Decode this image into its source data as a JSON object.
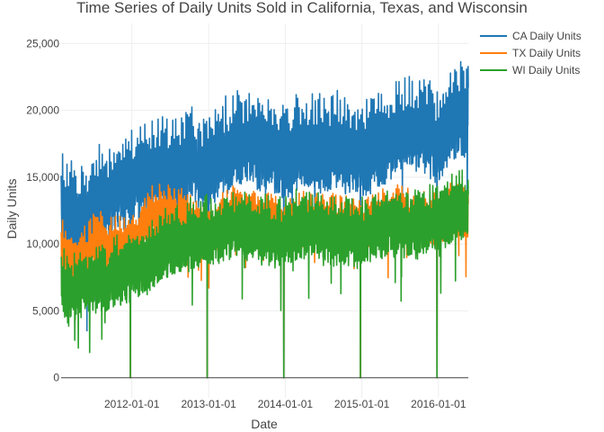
{
  "chart_data": {
    "type": "line",
    "title": "Time Series of Daily Units Sold in California, Texas, and Wisconsin",
    "xlabel": "Date",
    "ylabel": "Daily Units",
    "x_range": [
      "2011-01-29",
      "2016-05-22"
    ],
    "x_ticks": [
      "2012-01-01",
      "2013-01-01",
      "2014-01-01",
      "2015-01-01",
      "2016-01-01"
    ],
    "ylim": [
      -1500,
      26500
    ],
    "y_ticks": [
      0,
      5000,
      10000,
      15000,
      20000,
      25000
    ],
    "y_tick_labels": [
      "0",
      "5,000",
      "10,000",
      "15,000",
      "20,000",
      "25,000"
    ],
    "grid": true,
    "legend_position": "top-right",
    "zero_days": [
      "2011-12-25",
      "2012-12-25",
      "2013-12-25",
      "2014-12-25",
      "2015-12-25"
    ],
    "series": [
      {
        "name": "CA Daily Units",
        "color": "#1f77b4",
        "monthly_x": [
          "2011-02-01",
          "2011-03-01",
          "2011-04-01",
          "2011-05-01",
          "2011-06-01",
          "2011-07-01",
          "2011-08-01",
          "2011-09-01",
          "2011-10-01",
          "2011-11-01",
          "2011-12-01",
          "2012-01-01",
          "2012-02-01",
          "2012-03-01",
          "2012-04-01",
          "2012-05-01",
          "2012-06-01",
          "2012-07-01",
          "2012-08-01",
          "2012-09-01",
          "2012-10-01",
          "2012-11-01",
          "2012-12-01",
          "2013-01-01",
          "2013-02-01",
          "2013-03-01",
          "2013-04-01",
          "2013-05-01",
          "2013-06-01",
          "2013-07-01",
          "2013-08-01",
          "2013-09-01",
          "2013-10-01",
          "2013-11-01",
          "2013-12-01",
          "2014-01-01",
          "2014-02-01",
          "2014-03-01",
          "2014-04-01",
          "2014-05-01",
          "2014-06-01",
          "2014-07-01",
          "2014-08-01",
          "2014-09-01",
          "2014-10-01",
          "2014-11-01",
          "2014-12-01",
          "2015-01-01",
          "2015-02-01",
          "2015-03-01",
          "2015-04-01",
          "2015-05-01",
          "2015-06-01",
          "2015-07-01",
          "2015-08-01",
          "2015-09-01",
          "2015-10-01",
          "2015-11-01",
          "2015-12-01",
          "2016-01-01",
          "2016-02-01",
          "2016-03-01",
          "2016-04-01",
          "2016-05-01"
        ],
        "monthly_mean": [
          12800,
          12000,
          11800,
          11500,
          11300,
          12500,
          13200,
          13000,
          13500,
          14000,
          13800,
          14300,
          15200,
          14600,
          15000,
          15300,
          15600,
          15400,
          15200,
          15200,
          16000,
          15900,
          15500,
          15500,
          16200,
          16800,
          16700,
          16900,
          17300,
          17300,
          17400,
          17000,
          16800,
          16700,
          16500,
          16200,
          16500,
          17000,
          17000,
          17100,
          17000,
          16800,
          17000,
          17200,
          16900,
          16700,
          16600,
          16400,
          16700,
          16900,
          17200,
          17500,
          18000,
          17900,
          18300,
          18200,
          18100,
          18000,
          17800,
          17500,
          18500,
          19500,
          19200,
          19600
        ],
        "weekly_amplitude": 3000
      },
      {
        "name": "TX Daily Units",
        "color": "#ff7f0e",
        "monthly_x": [
          "2011-02-01",
          "2011-03-01",
          "2011-04-01",
          "2011-05-01",
          "2011-06-01",
          "2011-07-01",
          "2011-08-01",
          "2011-09-01",
          "2011-10-01",
          "2011-11-01",
          "2011-12-01",
          "2012-01-01",
          "2012-02-01",
          "2012-03-01",
          "2012-04-01",
          "2012-05-01",
          "2012-06-01",
          "2012-07-01",
          "2012-08-01",
          "2012-09-01",
          "2012-10-01",
          "2012-11-01",
          "2012-12-01",
          "2013-01-01",
          "2013-02-01",
          "2013-03-01",
          "2013-04-01",
          "2013-05-01",
          "2013-06-01",
          "2013-07-01",
          "2013-08-01",
          "2013-09-01",
          "2013-10-01",
          "2013-11-01",
          "2013-12-01",
          "2014-01-01",
          "2014-02-01",
          "2014-03-01",
          "2014-04-01",
          "2014-05-01",
          "2014-06-01",
          "2014-07-01",
          "2014-08-01",
          "2014-09-01",
          "2014-10-01",
          "2014-11-01",
          "2014-12-01",
          "2015-01-01",
          "2015-02-01",
          "2015-03-01",
          "2015-04-01",
          "2015-05-01",
          "2015-06-01",
          "2015-07-01",
          "2015-08-01",
          "2015-09-01",
          "2015-10-01",
          "2015-11-01",
          "2015-12-01",
          "2016-01-01",
          "2016-02-01",
          "2016-03-01",
          "2016-04-01",
          "2016-05-01"
        ],
        "monthly_mean": [
          9500,
          8800,
          8600,
          8800,
          9000,
          9800,
          10200,
          9600,
          9700,
          9800,
          9600,
          9800,
          10500,
          11500,
          12000,
          12000,
          12300,
          12200,
          11800,
          11700,
          11400,
          11300,
          11000,
          10800,
          11000,
          11300,
          11700,
          12100,
          12200,
          12300,
          11800,
          11600,
          11500,
          11500,
          11300,
          11000,
          11200,
          11400,
          11500,
          11700,
          11600,
          11400,
          11400,
          11300,
          11200,
          11200,
          11100,
          11000,
          11300,
          11700,
          11800,
          11900,
          12000,
          12000,
          11800,
          11700,
          11600,
          11700,
          11700,
          11400,
          11600,
          12200,
          12200,
          12000
        ],
        "weekly_amplitude": 1700
      },
      {
        "name": "WI Daily Units",
        "color": "#2ca02c",
        "monthly_x": [
          "2011-02-01",
          "2011-03-01",
          "2011-04-01",
          "2011-05-01",
          "2011-06-01",
          "2011-07-01",
          "2011-08-01",
          "2011-09-01",
          "2011-10-01",
          "2011-11-01",
          "2011-12-01",
          "2012-01-01",
          "2012-02-01",
          "2012-03-01",
          "2012-04-01",
          "2012-05-01",
          "2012-06-01",
          "2012-07-01",
          "2012-08-01",
          "2012-09-01",
          "2012-10-01",
          "2012-11-01",
          "2012-12-01",
          "2013-01-01",
          "2013-02-01",
          "2013-03-01",
          "2013-04-01",
          "2013-05-01",
          "2013-06-01",
          "2013-07-01",
          "2013-08-01",
          "2013-09-01",
          "2013-10-01",
          "2013-11-01",
          "2013-12-01",
          "2014-01-01",
          "2014-02-01",
          "2014-03-01",
          "2014-04-01",
          "2014-05-01",
          "2014-06-01",
          "2014-07-01",
          "2014-08-01",
          "2014-09-01",
          "2014-10-01",
          "2014-11-01",
          "2014-12-01",
          "2015-01-01",
          "2015-02-01",
          "2015-03-01",
          "2015-04-01",
          "2015-05-01",
          "2015-06-01",
          "2015-07-01",
          "2015-08-01",
          "2015-09-01",
          "2015-10-01",
          "2015-11-01",
          "2015-12-01",
          "2016-01-01",
          "2016-02-01",
          "2016-03-01",
          "2016-04-01",
          "2016-05-01"
        ],
        "monthly_mean": [
          7200,
          6200,
          6300,
          6700,
          6900,
          7000,
          7200,
          7000,
          7400,
          7600,
          7800,
          8000,
          8200,
          8400,
          8600,
          9000,
          9500,
          9800,
          10000,
          10200,
          10300,
          10500,
          10600,
          10500,
          10600,
          10800,
          11000,
          11000,
          11100,
          11000,
          10800,
          10700,
          10600,
          10500,
          10400,
          10300,
          10700,
          11000,
          11100,
          11000,
          10900,
          10600,
          10600,
          10600,
          10500,
          10500,
          10400,
          10400,
          10700,
          11000,
          11000,
          11200,
          11300,
          11200,
          11100,
          11000,
          11100,
          11200,
          11400,
          11300,
          11600,
          12200,
          12400,
          12600
        ],
        "weekly_amplitude": 2200
      }
    ]
  }
}
